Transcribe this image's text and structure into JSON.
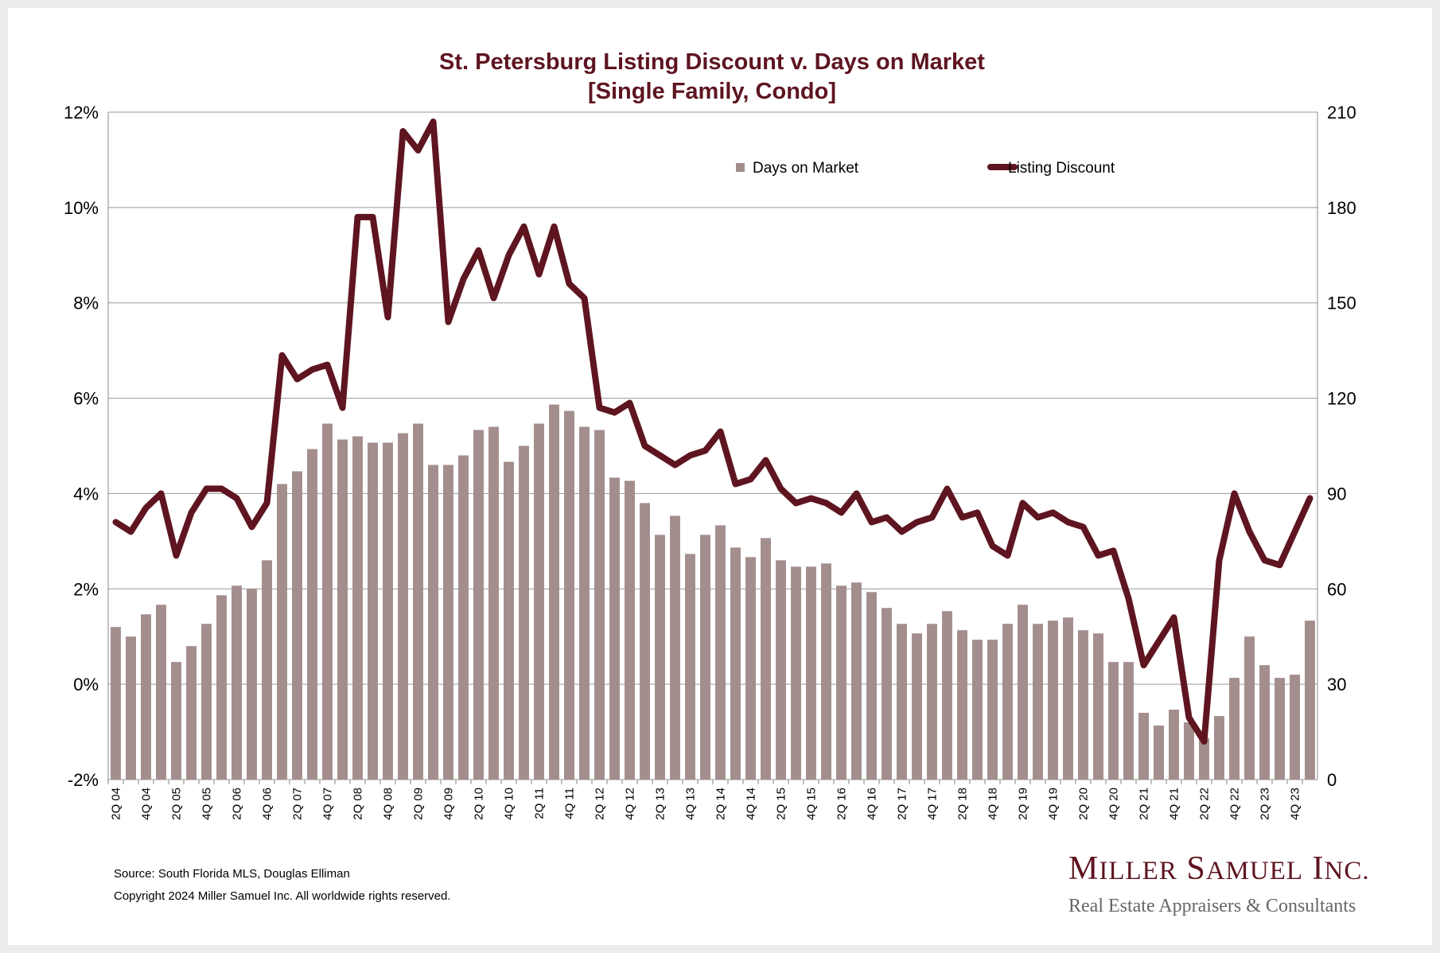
{
  "chart_data": {
    "type": "bar+line",
    "title": "St. Petersburg Listing Discount v. Days on Market",
    "subtitle": "[Single Family, Condo]",
    "x_labels": [
      "2Q 04",
      "",
      "4Q 04",
      "",
      "2Q 05",
      "",
      "4Q 05",
      "",
      "2Q 06",
      "",
      "4Q 06",
      "",
      "2Q 07",
      "",
      "4Q 07",
      "",
      "2Q 08",
      "",
      "4Q 08",
      "",
      "2Q 09",
      "",
      "4Q 09",
      "",
      "2Q 10",
      "",
      "4Q 10",
      "",
      "2Q 11",
      "",
      "4Q 11",
      "",
      "2Q 12",
      "",
      "4Q 12",
      "",
      "2Q 13",
      "",
      "4Q 13",
      "",
      "2Q 14",
      "",
      "4Q 14",
      "",
      "2Q 15",
      "",
      "4Q 15",
      "",
      "2Q 16",
      "",
      "4Q 16",
      "",
      "2Q 17",
      "",
      "4Q 17",
      "",
      "2Q 18",
      "",
      "4Q 18",
      "",
      "2Q 19",
      "",
      "4Q 19",
      "",
      "2Q 20",
      "",
      "4Q 20",
      "",
      "2Q 21",
      "",
      "4Q 21",
      "",
      "2Q 22",
      "",
      "4Q 22",
      "",
      "2Q 23",
      "",
      "4Q 23",
      ""
    ],
    "left_axis": {
      "min": -2,
      "max": 12,
      "step": 2,
      "ticks": [
        "-2%",
        "0%",
        "2%",
        "4%",
        "6%",
        "8%",
        "10%",
        "12%"
      ]
    },
    "right_axis": {
      "min": 0,
      "max": 210,
      "step": 30,
      "ticks": [
        "0",
        "30",
        "60",
        "90",
        "120",
        "150",
        "180",
        "210"
      ]
    },
    "grid": true,
    "legend_position": "top-right",
    "series": [
      {
        "name": "Days on Market",
        "type": "bar",
        "axis": "right",
        "color": "#a38d8d",
        "values": [
          48,
          45,
          52,
          55,
          37,
          42,
          49,
          58,
          61,
          60,
          69,
          93,
          97,
          104,
          112,
          107,
          108,
          106,
          106,
          109,
          112,
          99,
          99,
          102,
          110,
          111,
          100,
          105,
          112,
          118,
          116,
          111,
          110,
          95,
          94,
          87,
          77,
          83,
          71,
          77,
          80,
          73,
          70,
          76,
          69,
          67,
          67,
          68,
          61,
          62,
          59,
          54,
          49,
          46,
          49,
          53,
          47,
          44,
          44,
          49,
          55,
          49,
          50,
          51,
          47,
          46,
          37,
          37,
          21,
          17,
          22,
          18,
          13,
          20,
          32,
          45,
          36,
          32,
          33,
          50
        ]
      },
      {
        "name": "Listing Discount",
        "type": "line",
        "axis": "left",
        "color": "#5e1520",
        "values": [
          3.4,
          3.2,
          3.7,
          4.0,
          2.7,
          3.6,
          4.1,
          4.1,
          3.9,
          3.3,
          3.8,
          6.9,
          6.4,
          6.6,
          6.7,
          5.8,
          9.8,
          9.8,
          7.7,
          11.6,
          11.2,
          11.8,
          7.6,
          8.5,
          9.1,
          8.1,
          9.0,
          9.6,
          8.6,
          9.6,
          8.4,
          8.1,
          5.8,
          5.7,
          5.9,
          5.0,
          4.8,
          4.6,
          4.8,
          4.9,
          5.3,
          4.2,
          4.3,
          4.7,
          4.1,
          3.8,
          3.9,
          3.8,
          3.6,
          4.0,
          3.4,
          3.5,
          3.2,
          3.4,
          3.5,
          4.1,
          3.5,
          3.6,
          2.9,
          2.7,
          3.8,
          3.5,
          3.6,
          3.4,
          3.3,
          2.7,
          2.8,
          1.8,
          0.4,
          0.9,
          1.4,
          -0.7,
          -1.2,
          2.6,
          4.0,
          3.2,
          2.6,
          2.5,
          3.2,
          3.9
        ]
      }
    ]
  },
  "footer": {
    "source": "Source: South Florida MLS, Douglas Elliman",
    "copyright": "Copyright 2024 Miller Samuel Inc.  All worldwide rights reserved."
  },
  "logo": {
    "name": "Miller Samuel Inc.",
    "tagline": "Real Estate Appraisers & Consultants"
  }
}
